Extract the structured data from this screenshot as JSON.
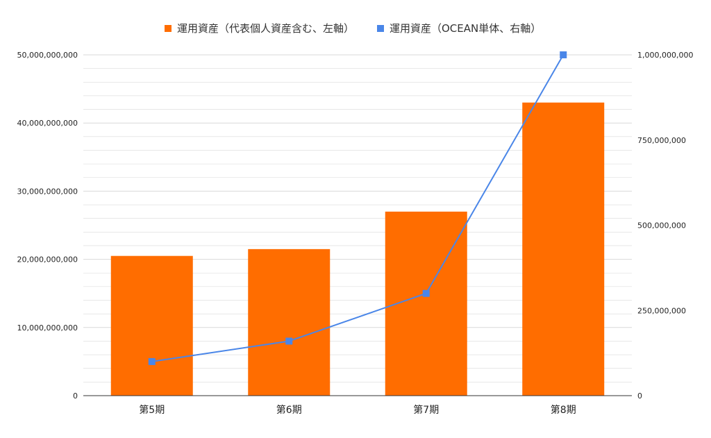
{
  "colors": {
    "bars": "#FF6D00",
    "line": "#4A86E8",
    "grid": "#D9D9D9",
    "axis": "#333333"
  },
  "legend": [
    {
      "label": "運用資産（代表個人資産含む、左軸）",
      "marker": "square",
      "color": "#FF6D00"
    },
    {
      "label": "運用資産（OCEAN単体、右軸）",
      "marker": "square",
      "color": "#4A86E8"
    }
  ],
  "y_left_ticks": [
    "0",
    "10,000,000,000",
    "20,000,000,000",
    "30,000,000,000",
    "40,000,000,000",
    "50,000,000,000"
  ],
  "y_right_ticks": [
    "0",
    "250,000,000",
    "500,000,000",
    "750,000,000",
    "1,000,000,000"
  ],
  "chart_data": {
    "type": "bar",
    "categories": [
      "第5期",
      "第6期",
      "第7期",
      "第8期"
    ],
    "series": [
      {
        "name": "運用資産（代表個人資産含む、左軸）",
        "type": "bar",
        "axis": "left",
        "values": [
          20500000000,
          21500000000,
          27000000000,
          43000000000
        ]
      },
      {
        "name": "運用資産（OCEAN単体、右軸）",
        "type": "line",
        "axis": "right",
        "values": [
          100000000,
          160000000,
          300000000,
          1000000000
        ]
      }
    ],
    "ylim_left": [
      0,
      50000000000
    ],
    "ylim_right": [
      0,
      1000000000
    ],
    "grid": true,
    "legend_position": "top-center"
  }
}
